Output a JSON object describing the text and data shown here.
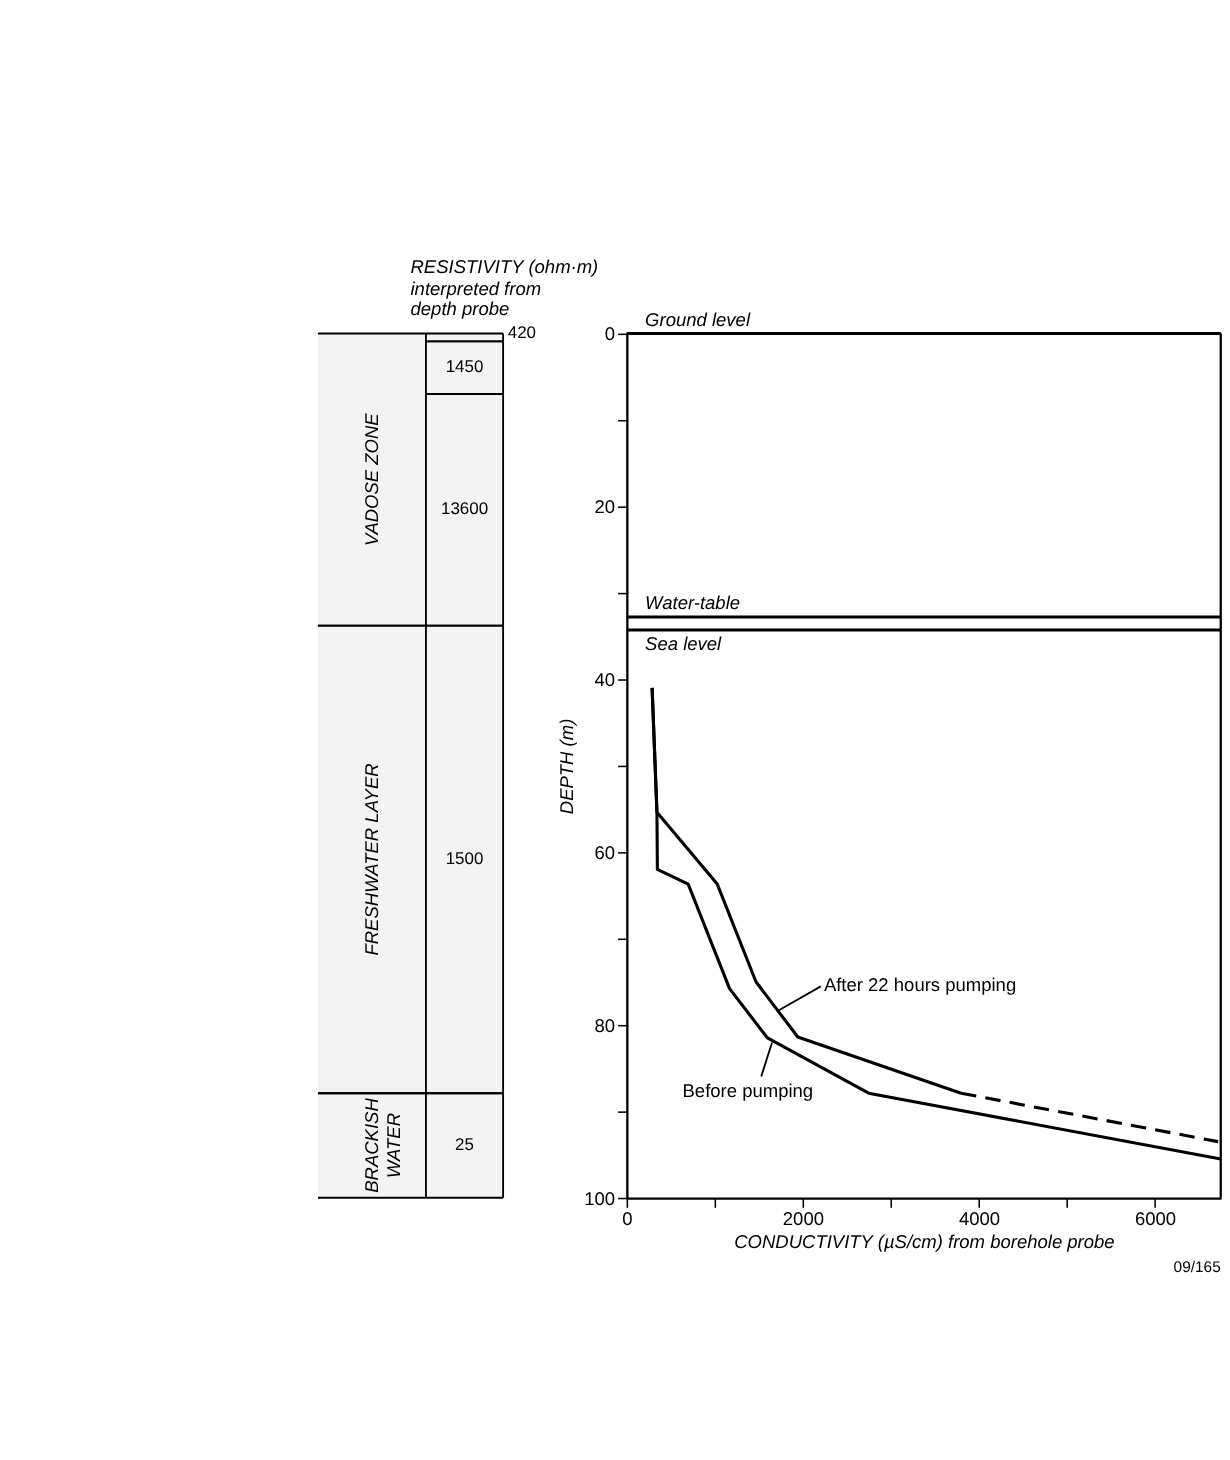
{
  "chart_data": {
    "type": "line",
    "title": "RESISTIVITY (ohm·m)",
    "subtitle": "interpreted from depth probe",
    "xlabel": "CONDUCTIVITY (µS/cm) from borehole probe",
    "ylabel": "DEPTH (m)",
    "line_style": "solid",
    "xlim": [
      0,
      6750
    ],
    "xticks": [
      0,
      {
        "value": 1000,
        "label": null
      },
      2000,
      {
        "value": 3000,
        "label": null
      },
      4000,
      {
        "value": 5000,
        "label": null
      },
      6000
    ],
    "ylim": [
      100,
      0
    ],
    "yticks": [
      0,
      {
        "value": 10,
        "label": null
      },
      20,
      {
        "value": 30,
        "label": null
      },
      40,
      {
        "value": 50,
        "label": null
      },
      60,
      {
        "value": 70,
        "label": null
      },
      80,
      {
        "value": 90,
        "label": null
      },
      100
    ],
    "series": [
      {
        "name": "Before pumping",
        "color": "#000000",
        "x": [
          290,
          345,
          350,
          700,
          1170,
          1600,
          2750,
          6750
        ],
        "values": [
          41,
          55.4,
          62,
          63.7,
          75.8,
          81.5,
          87.9,
          95.5
        ]
      },
      {
        "name": "After 22 hours pumping",
        "color": "#000000",
        "x": [
          290,
          345,
          1030,
          1470,
          1945,
          3800
        ],
        "values": [
          41,
          55.4,
          63.7,
          75,
          81.4,
          87.9
        ]
      },
      {
        "color": "#000000",
        "x": [
          3800,
          6720
        ],
        "values": [
          87.9,
          93.5
        ],
        "line_style": "dashed"
      }
    ],
    "ref_lines": [
      {
        "axis": "y",
        "value": 0,
        "label": "Ground level"
      },
      {
        "axis": "y",
        "value": 32.8,
        "label": "Water-table"
      },
      {
        "axis": "y",
        "value": 34.3,
        "label": "Sea level"
      }
    ],
    "bands": [
      {
        "axis": "y",
        "from": 0,
        "to": 33.8,
        "label": "VADOSE ZONE",
        "color": "#f3f3f3"
      },
      {
        "axis": "y",
        "from": 33.8,
        "to": 87.9,
        "label": "FRESHWATER LAYER",
        "color": "#f3f3f3"
      },
      {
        "axis": "y",
        "from": 87.9,
        "to": 100,
        "label": "BRACKISH WATER",
        "color": "#f3f3f3"
      },
      {
        "axis": "y",
        "from": 0,
        "to": 0.9,
        "label": "420",
        "color": "#f3f3f3"
      },
      {
        "axis": "y",
        "from": 0.9,
        "to": 7,
        "label": "1450",
        "color": "#f3f3f3"
      },
      {
        "axis": "y",
        "from": 7,
        "to": 33.8,
        "label": "13600",
        "color": "#f3f3f3"
      },
      {
        "axis": "y",
        "from": 33.8,
        "to": 87.9,
        "label": "1500",
        "color": "#f3f3f3"
      },
      {
        "axis": "y",
        "from": 87.9,
        "to": 100,
        "label": "25",
        "color": "#f3f3f3"
      }
    ],
    "annotations": [
      "09/165"
    ]
  }
}
